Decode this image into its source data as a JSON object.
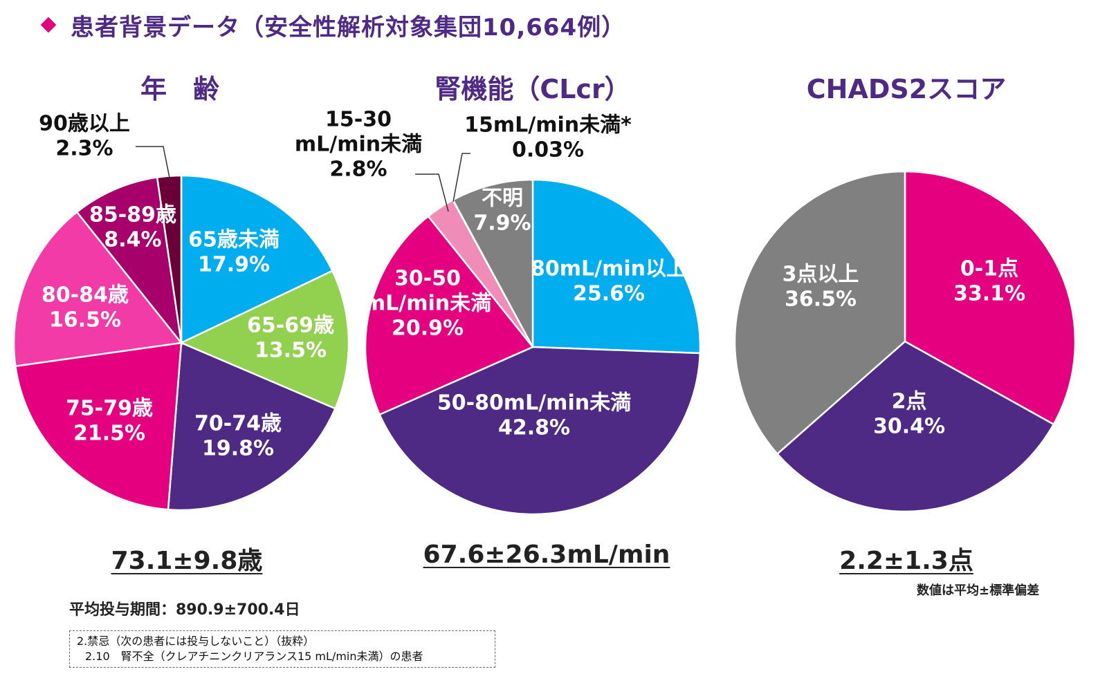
{
  "header": {
    "title": "患者背景データ（安全性解析対象集団10,664例）",
    "bullet_color": "#e4007f"
  },
  "charts": [
    {
      "title": "年　齢",
      "stat": "73.1±9.8歳"
    },
    {
      "title": "腎機能（CLcr）",
      "stat": "67.6±26.3mL/min"
    },
    {
      "title": "CHADS2スコア",
      "stat": "2.2±1.3点"
    }
  ],
  "footnote_sd": "数値は平均±標準偏差",
  "period": "平均投与期間：890.9±700.4日",
  "notice": {
    "line1": "2.禁忌（次の患者には投与しないこと）（抜粋）",
    "line2": "2.10　腎不全（クレアチニンクリアランス15 mL/min未満）の患者"
  },
  "chart_data": [
    {
      "type": "pie",
      "title": "年　齢",
      "slices": [
        {
          "label": "65歳未満",
          "value": 17.9,
          "display": "17.9%",
          "color": "#00aeef"
        },
        {
          "label": "65-69歳",
          "value": 13.5,
          "display": "13.5%",
          "color": "#92d050"
        },
        {
          "label": "70-74歳",
          "value": 19.8,
          "display": "19.8%",
          "color": "#4e2a84"
        },
        {
          "label": "75-79歳",
          "value": 21.5,
          "display": "21.5%",
          "color": "#e4007f"
        },
        {
          "label": "80-84歳",
          "value": 16.5,
          "display": "16.5%",
          "color": "#f23ba6"
        },
        {
          "label": "85-89歳",
          "value": 8.4,
          "display": "8.4%",
          "color": "#a8006a"
        },
        {
          "label": "90歳以上",
          "value": 2.3,
          "display": "2.3%",
          "color": "#6b0038"
        }
      ]
    },
    {
      "type": "pie",
      "title": "腎機能（CLcr）",
      "slices": [
        {
          "label": "80mL/min以上",
          "value": 25.6,
          "display": "25.6%",
          "color": "#00aeef"
        },
        {
          "label": "50-80mL/min未満",
          "value": 42.8,
          "display": "42.8%",
          "color": "#4e2a84"
        },
        {
          "label": "30-50 mL/min未満",
          "value": 20.9,
          "display": "20.9%",
          "color": "#e4007f"
        },
        {
          "label": "15-30 mL/min未満",
          "value": 2.8,
          "display": "2.8%",
          "color": "#f08cb8"
        },
        {
          "label": "15mL/min未満*",
          "value": 0.03,
          "display": "0.03%",
          "color": "#c0c0c0"
        },
        {
          "label": "不明",
          "value": 7.9,
          "display": "7.9%",
          "color": "#808080"
        }
      ]
    },
    {
      "type": "pie",
      "title": "CHADS2スコア",
      "slices": [
        {
          "label": "0-1点",
          "value": 33.1,
          "display": "33.1%",
          "color": "#e4007f"
        },
        {
          "label": "2点",
          "value": 30.4,
          "display": "30.4%",
          "color": "#4e2a84"
        },
        {
          "label": "3点以上",
          "value": 36.5,
          "display": "36.5%",
          "color": "#808080"
        }
      ]
    }
  ]
}
